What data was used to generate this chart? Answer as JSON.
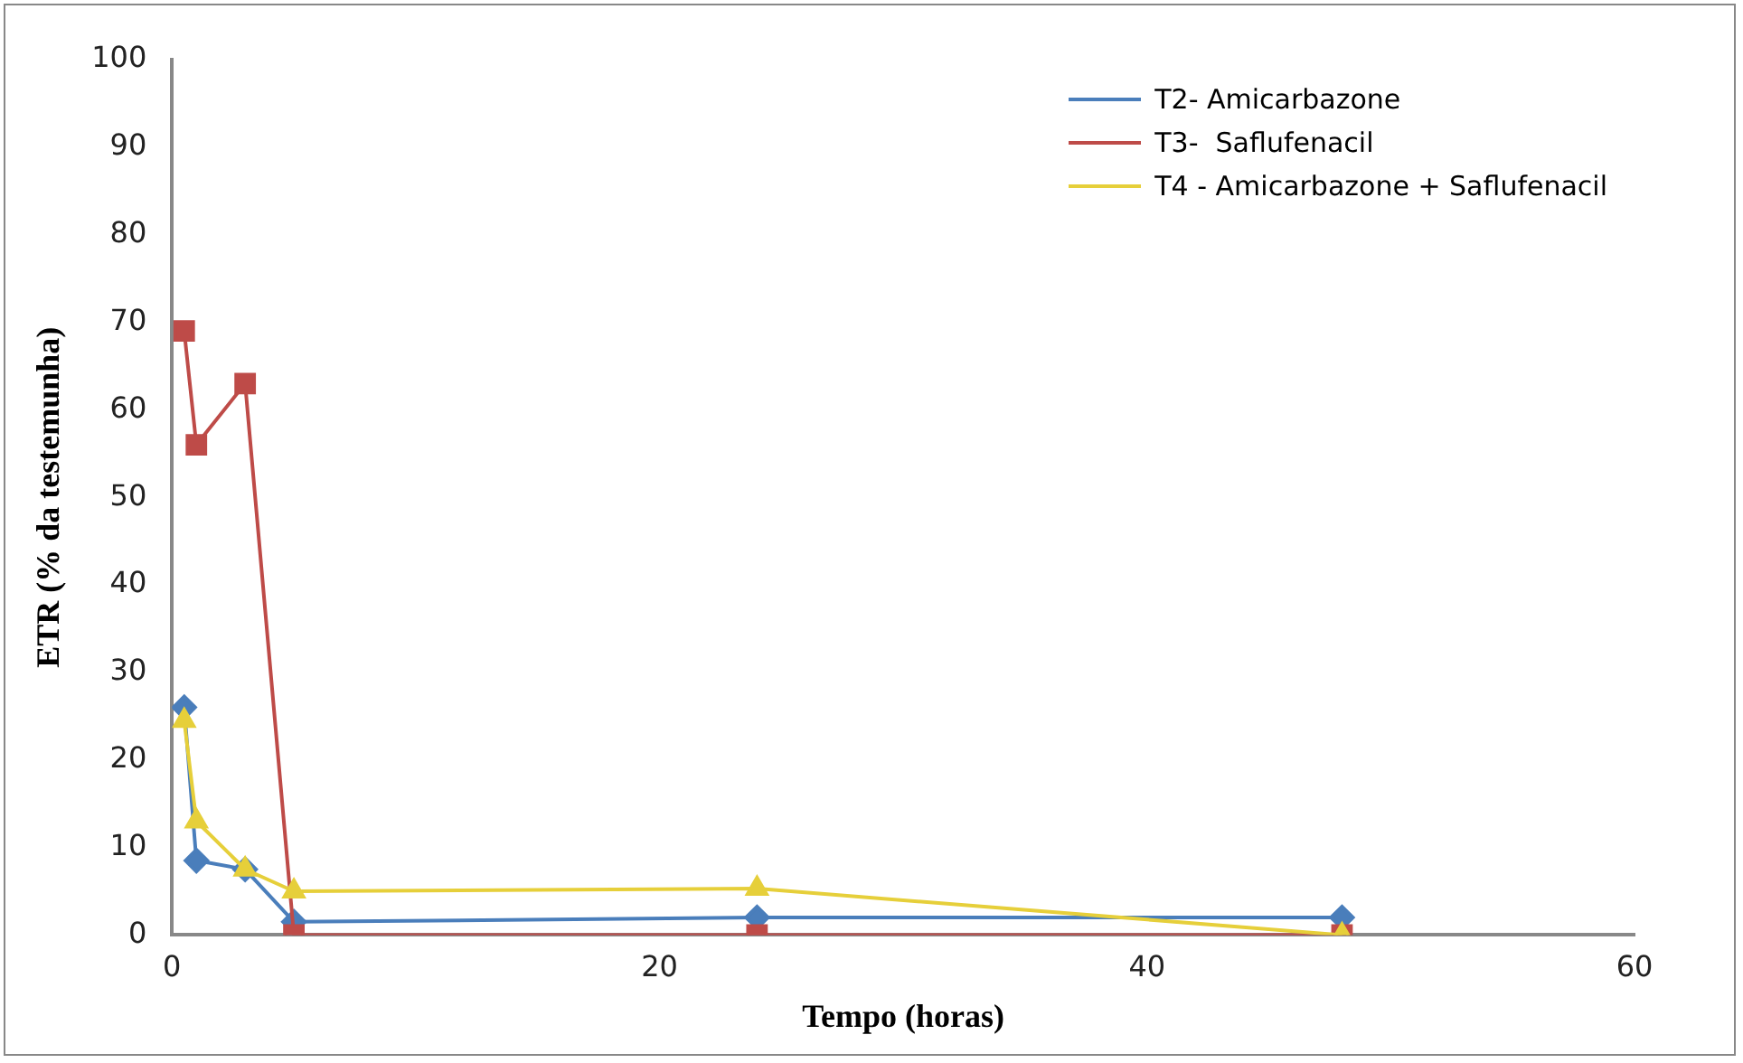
{
  "chart_data": {
    "type": "line",
    "xlabel": "Tempo (horas)",
    "ylabel": "ETR (% da testemunha)",
    "xlim": [
      0,
      60
    ],
    "xticks": [
      0,
      20,
      40,
      60
    ],
    "ylim": [
      0,
      100
    ],
    "yticks": [
      0,
      10,
      20,
      30,
      40,
      50,
      60,
      70,
      80,
      90,
      100
    ],
    "grid": false,
    "legend": "top right",
    "line_style": "solid",
    "series": [
      {
        "name": "T2- Amicarbazone",
        "color": "#4a7ebb",
        "marker": "diamond",
        "x": [
          0.5,
          1,
          3,
          5,
          24,
          48
        ],
        "values": [
          26,
          8.5,
          7.5,
          1.5,
          2,
          2
        ]
      },
      {
        "name": "T3-  Saflufenacil",
        "color": "#be4b48",
        "marker": "square",
        "x": [
          0.5,
          1,
          3,
          5,
          24,
          48
        ],
        "values": [
          69,
          56,
          63,
          0,
          0,
          0
        ]
      },
      {
        "name": "T4 - Amicarbazone + Saflufenacil",
        "color": "#e6cf3a",
        "marker": "triangle",
        "x": [
          0.5,
          1,
          3,
          5,
          24,
          48
        ],
        "values": [
          24.5,
          13,
          7.5,
          5,
          5.3,
          0
        ]
      }
    ]
  }
}
